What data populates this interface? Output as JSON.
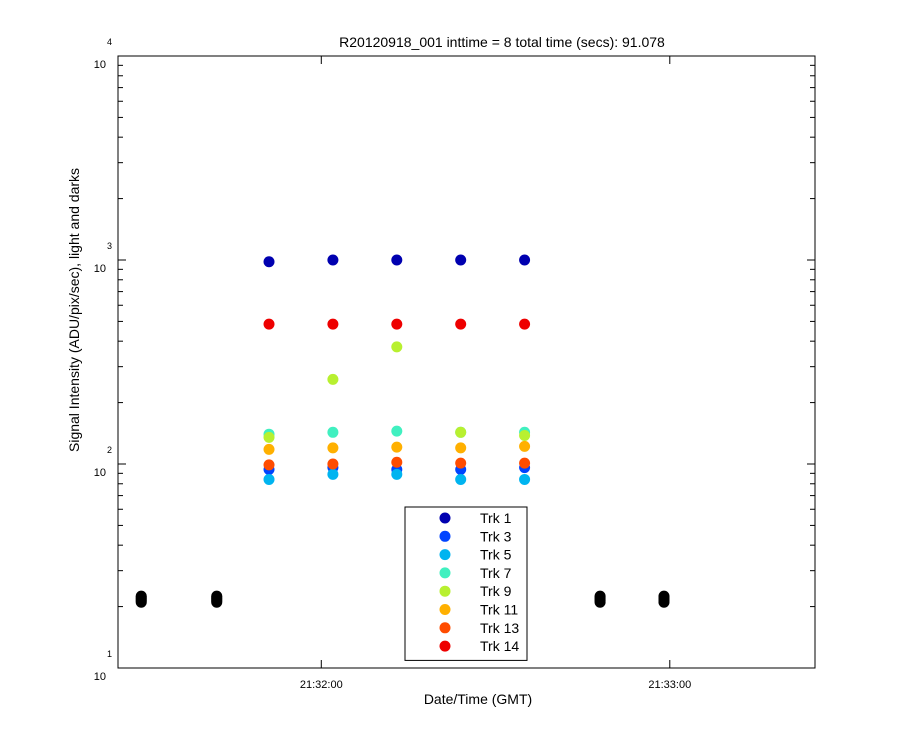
{
  "chart_data": {
    "type": "scatter",
    "title": "R20120918_001 inttime = 8 total time (secs): 91.078",
    "xlabel": "Date/Time (GMT)",
    "ylabel": "Signal Intensity (ADU/pix/sec), light and darks",
    "x_scale": "time",
    "y_scale": "log",
    "xlim": [
      "21:31:25",
      "21:33:25"
    ],
    "ylim": [
      10,
      10000
    ],
    "x_ticks": [
      "21:32:00",
      "21:33:00"
    ],
    "y_ticks": [
      {
        "base": "10",
        "exp": "1"
      },
      {
        "base": "10",
        "exp": "2"
      },
      {
        "base": "10",
        "exp": "3"
      },
      {
        "base": "10",
        "exp": "4"
      }
    ],
    "grid": false,
    "legend_position": "bottom-center",
    "legend": [
      {
        "label": "Trk 1",
        "color": "#0000b0"
      },
      {
        "label": "Trk 3",
        "color": "#0044ff"
      },
      {
        "label": "Trk 5",
        "color": "#00b4f0"
      },
      {
        "label": "Trk 7",
        "color": "#40f0c0"
      },
      {
        "label": "Trk 9",
        "color": "#b8f030"
      },
      {
        "label": "Trk 11",
        "color": "#ffb000"
      },
      {
        "label": "Trk 13",
        "color": "#ff4c00"
      },
      {
        "label": "Trk 14",
        "color": "#ee0000"
      }
    ],
    "x_times": [
      "21:31:51",
      "21:32:02",
      "21:32:13",
      "21:32:24",
      "21:32:35"
    ],
    "series": [
      {
        "name": "Trk 1",
        "color": "#0000b0",
        "y": [
          980,
          1000,
          1000,
          1000,
          1000
        ]
      },
      {
        "name": "Trk 3",
        "color": "#0044ff",
        "y": [
          94,
          96,
          94,
          94,
          96
        ]
      },
      {
        "name": "Trk 5",
        "color": "#00b4f0",
        "y": [
          84,
          89,
          89,
          84,
          84
        ]
      },
      {
        "name": "Trk 7",
        "color": "#40f0c0",
        "y": [
          140,
          143,
          145,
          143,
          143
        ]
      },
      {
        "name": "Trk 9",
        "color": "#b8f030",
        "y": [
          135,
          260,
          375,
          143,
          138
        ]
      },
      {
        "name": "Trk 11",
        "color": "#ffb000",
        "y": [
          118,
          120,
          121,
          120,
          122
        ]
      },
      {
        "name": "Trk 13",
        "color": "#ff4c00",
        "y": [
          99,
          100,
          102,
          101,
          101
        ]
      },
      {
        "name": "Trk 14",
        "color": "#ee0000",
        "y": [
          485,
          485,
          485,
          485,
          485
        ]
      }
    ],
    "dark_series": {
      "color": "#000000",
      "x_times": [
        "21:31:29",
        "21:31:42",
        "21:32:48",
        "21:32:59"
      ],
      "y_min": 21,
      "y_max": 22.5
    }
  }
}
